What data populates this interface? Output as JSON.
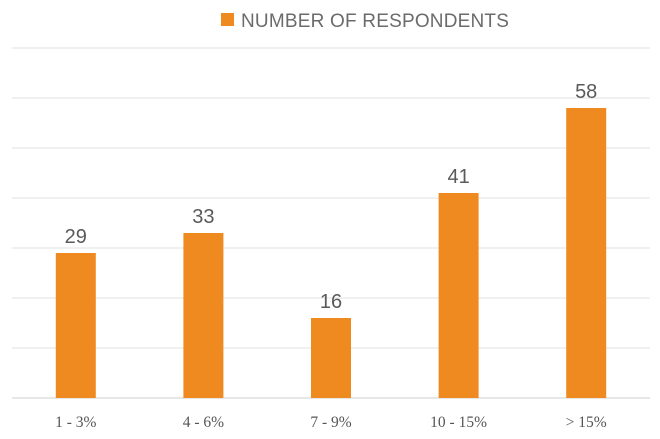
{
  "chart_data": {
    "type": "bar",
    "categories": [
      "1 - 3%",
      "4 - 6%",
      "7 - 9%",
      "10 - 15%",
      "> 15%"
    ],
    "series": [
      {
        "name": "NUMBER OF RESPONDENTS",
        "values": [
          29,
          33,
          16,
          41,
          58
        ]
      }
    ],
    "value_labels": [
      "29",
      "33",
      "16",
      "41",
      "58"
    ],
    "ylim": [
      0,
      70
    ],
    "grid": true,
    "legend_position": "top-center",
    "colors": {
      "bar": "#ef8a20",
      "grid": "#e2e2e2",
      "axis": "#cfcfcf"
    }
  }
}
